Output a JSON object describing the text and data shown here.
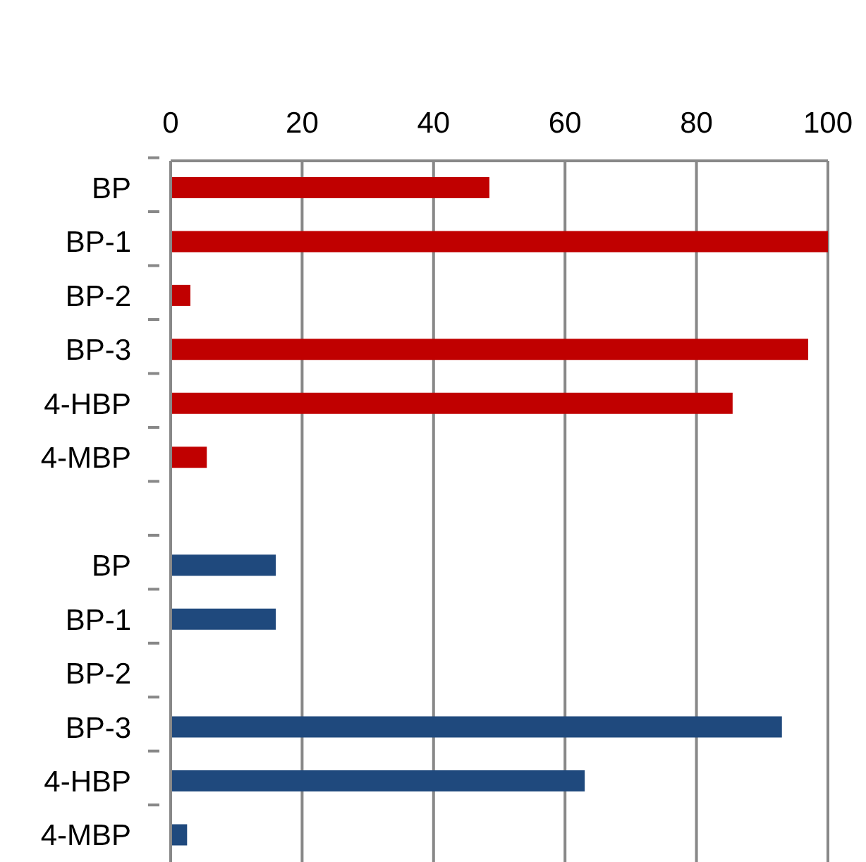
{
  "chart_data": {
    "type": "bar",
    "orientation": "horizontal",
    "categories": [
      "BP",
      "BP-1",
      "BP-2",
      "BP-3",
      "4-HBP",
      "4-MBP",
      null,
      "BP",
      "BP-1",
      "BP-2",
      "BP-3",
      "4-HBP",
      "4-MBP"
    ],
    "values": [
      48.5,
      100,
      3,
      97,
      85.5,
      5.5,
      null,
      16,
      16,
      null,
      93,
      63,
      2.5
    ],
    "colors": [
      "#c00000",
      "#c00000",
      "#c00000",
      "#c00000",
      "#c00000",
      "#c00000",
      "#c00000",
      "#1f497d",
      "#1f497d",
      "#1f497d",
      "#1f497d",
      "#1f497d",
      "#1f497d"
    ],
    "xlim": [
      0,
      100
    ],
    "xticks": [
      0,
      20,
      40,
      60,
      80,
      100
    ],
    "grid": "x",
    "legend": false
  }
}
